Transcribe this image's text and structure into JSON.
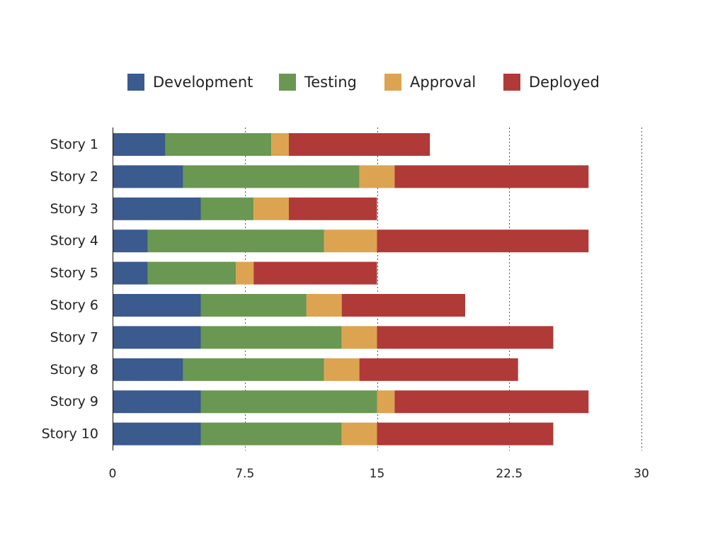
{
  "chart_data": {
    "type": "bar",
    "orientation": "horizontal",
    "stacked": true,
    "title": "",
    "xlabel": "",
    "ylabel": "",
    "xlim": [
      0,
      30
    ],
    "x_ticks": [
      0,
      7.5,
      15,
      22.5,
      30
    ],
    "x_tick_labels": [
      "0",
      "7.5",
      "15",
      "22.5",
      "30"
    ],
    "grid": true,
    "legend_position": "top",
    "categories": [
      "Story 1",
      "Story 2",
      "Story 3",
      "Story 4",
      "Story 5",
      "Story 6",
      "Story 7",
      "Story 8",
      "Story 9",
      "Story 10"
    ],
    "series": [
      {
        "name": "Development",
        "color": "#3b5a8d",
        "values": [
          3,
          4,
          5,
          2,
          2,
          5,
          5,
          4,
          5,
          5
        ]
      },
      {
        "name": "Testing",
        "color": "#6a9752",
        "values": [
          6,
          10,
          3,
          10,
          5,
          6,
          8,
          8,
          10,
          8
        ]
      },
      {
        "name": "Approval",
        "color": "#dca451",
        "values": [
          1,
          2,
          2,
          3,
          1,
          2,
          2,
          2,
          1,
          2
        ]
      },
      {
        "name": "Deployed",
        "color": "#b03a38",
        "values": [
          8,
          11,
          5,
          12,
          7,
          7,
          10,
          9,
          11,
          10
        ]
      }
    ]
  }
}
